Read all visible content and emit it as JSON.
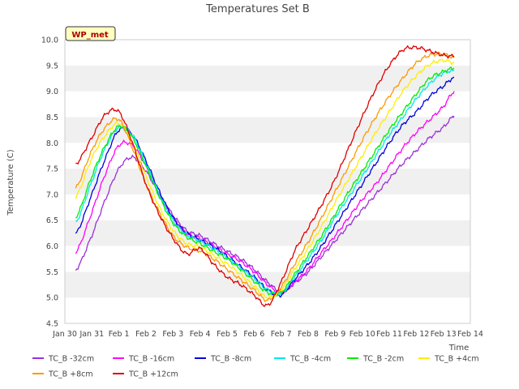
{
  "chart_data": {
    "type": "line",
    "title": "Temperatures Set B",
    "xlabel": "Time",
    "ylabel": "Temperature (C)",
    "badge": "WP_met",
    "ylim": [
      4.5,
      10.0
    ],
    "xlim": [
      0,
      15
    ],
    "y_ticks": [
      4.5,
      5.0,
      5.5,
      6.0,
      6.5,
      7.0,
      7.5,
      8.0,
      8.5,
      9.0,
      9.5,
      10.0
    ],
    "x_ticks": [
      "Jan 30",
      "Jan 31",
      "Feb 1",
      "Feb 2",
      "Feb 3",
      "Feb 4",
      "Feb 5",
      "Feb 6",
      "Feb 7",
      "Feb 8",
      "Feb 9",
      "Feb 10",
      "Feb 11",
      "Feb 12",
      "Feb 13",
      "Feb 14"
    ],
    "grid": "horizontal bands",
    "legend_position": "bottom",
    "x_days": [
      0.4,
      1.0,
      1.5,
      2.0,
      2.5,
      3.0,
      3.5,
      4.0,
      4.5,
      5.0,
      5.5,
      6.0,
      6.5,
      7.0,
      7.5,
      8.0,
      8.5,
      9.0,
      9.5,
      10.0,
      10.5,
      11.0,
      11.5,
      12.0,
      12.5,
      13.0,
      13.5,
      14.0,
      14.4
    ],
    "series": [
      {
        "name": "TC_B -32cm",
        "color": "#9b30d9",
        "values": [
          5.53,
          6.2,
          6.9,
          7.5,
          7.72,
          7.45,
          7.0,
          6.6,
          6.3,
          6.2,
          6.05,
          5.9,
          5.75,
          5.55,
          5.3,
          5.12,
          5.28,
          5.5,
          5.8,
          6.1,
          6.4,
          6.7,
          7.0,
          7.3,
          7.6,
          7.85,
          8.1,
          8.3,
          8.52
        ]
      },
      {
        "name": "TC_B -16cm",
        "color": "#ff00ff",
        "values": [
          5.87,
          6.65,
          7.4,
          7.95,
          7.95,
          7.55,
          7.0,
          6.55,
          6.25,
          6.15,
          6.0,
          5.85,
          5.7,
          5.5,
          5.25,
          5.1,
          5.3,
          5.55,
          5.88,
          6.2,
          6.55,
          6.9,
          7.2,
          7.55,
          7.9,
          8.2,
          8.45,
          8.7,
          9.0
        ]
      },
      {
        "name": "TC_B -8cm",
        "color": "#0000dd",
        "values": [
          6.23,
          7.0,
          7.7,
          8.25,
          8.15,
          7.65,
          7.05,
          6.55,
          6.25,
          6.12,
          5.98,
          5.8,
          5.6,
          5.4,
          5.15,
          5.05,
          5.35,
          5.65,
          6.0,
          6.4,
          6.8,
          7.2,
          7.6,
          8.0,
          8.35,
          8.6,
          8.9,
          9.1,
          9.27
        ]
      },
      {
        "name": "TC_B -4cm",
        "color": "#00e8f0",
        "values": [
          6.45,
          7.25,
          7.9,
          8.3,
          8.15,
          7.6,
          7.0,
          6.5,
          6.22,
          6.1,
          5.95,
          5.78,
          5.58,
          5.38,
          5.15,
          5.08,
          5.4,
          5.75,
          6.12,
          6.55,
          6.95,
          7.35,
          7.75,
          8.15,
          8.5,
          8.85,
          9.15,
          9.35,
          9.4
        ]
      },
      {
        "name": "TC_B -2cm",
        "color": "#00ee00",
        "values": [
          6.55,
          7.35,
          7.95,
          8.32,
          8.1,
          7.55,
          6.95,
          6.45,
          6.18,
          6.05,
          5.9,
          5.75,
          5.55,
          5.32,
          5.1,
          5.1,
          5.45,
          5.82,
          6.2,
          6.62,
          7.05,
          7.45,
          7.85,
          8.25,
          8.6,
          8.95,
          9.25,
          9.38,
          9.45
        ]
      },
      {
        "name": "TC_B +4cm",
        "color": "#ffee00",
        "values": [
          6.95,
          7.7,
          8.15,
          8.38,
          8.0,
          7.35,
          6.75,
          6.3,
          6.05,
          5.98,
          5.82,
          5.65,
          5.45,
          5.22,
          5.0,
          5.15,
          5.55,
          5.95,
          6.38,
          6.85,
          7.3,
          7.75,
          8.2,
          8.6,
          9.0,
          9.3,
          9.52,
          9.6,
          9.55
        ]
      },
      {
        "name": "TC_B +8cm",
        "color": "#ff9900",
        "values": [
          7.12,
          7.85,
          8.3,
          8.45,
          7.9,
          7.2,
          6.65,
          6.2,
          5.98,
          5.9,
          5.75,
          5.55,
          5.35,
          5.15,
          4.95,
          5.2,
          5.65,
          6.08,
          6.55,
          7.05,
          7.55,
          8.05,
          8.5,
          8.9,
          9.25,
          9.55,
          9.7,
          9.72,
          9.65
        ]
      },
      {
        "name": "TC_B +12cm",
        "color": "#dd0000",
        "values": [
          7.58,
          8.1,
          8.55,
          8.6,
          8.0,
          7.2,
          6.6,
          6.15,
          5.85,
          5.95,
          5.65,
          5.4,
          5.25,
          5.05,
          4.85,
          5.3,
          5.9,
          6.35,
          6.8,
          7.3,
          7.9,
          8.5,
          9.05,
          9.5,
          9.8,
          9.85,
          9.78,
          9.7,
          9.68
        ]
      }
    ]
  }
}
